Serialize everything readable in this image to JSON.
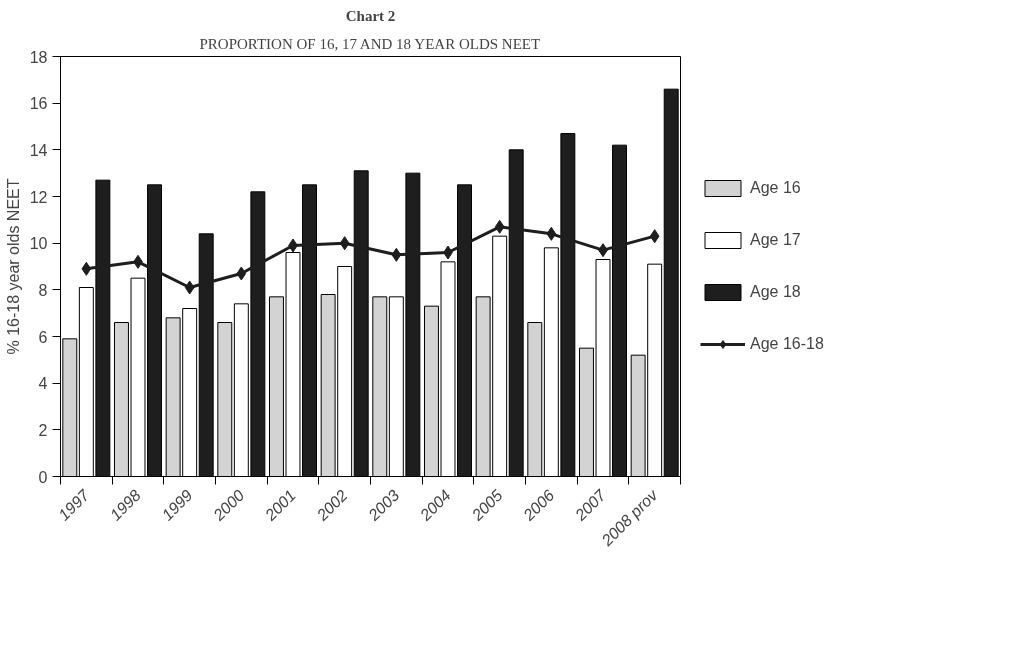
{
  "chart_data": {
    "type": "bar",
    "title": "Chart 2",
    "subtitle": "PROPORTION OF 16, 17 AND 18 YEAR OLDS NEET",
    "ylabel": "% 16-18 year olds NEET",
    "categories": [
      "1997",
      "1998",
      "1999",
      "2000",
      "2001",
      "2002",
      "2003",
      "2004",
      "2005",
      "2006",
      "2007",
      "2008 prov"
    ],
    "series": [
      {
        "name": "Age 16",
        "color": "#d3d3d3",
        "values": [
          5.9,
          6.6,
          6.8,
          6.6,
          7.7,
          7.8,
          7.7,
          7.3,
          7.7,
          6.6,
          5.5,
          5.2
        ]
      },
      {
        "name": "Age 17",
        "color": "#ffffff",
        "values": [
          8.1,
          8.5,
          7.2,
          7.4,
          9.6,
          9.0,
          7.7,
          9.2,
          10.3,
          9.8,
          9.3,
          9.1
        ]
      },
      {
        "name": "Age 18",
        "color": "#1e1e1e",
        "values": [
          12.7,
          12.5,
          10.4,
          12.2,
          12.5,
          13.1,
          13.0,
          12.5,
          14.0,
          14.7,
          14.2,
          16.6
        ]
      },
      {
        "name": "Age 16-18",
        "type": "line",
        "color": "#1e1e1e",
        "marker": "diamond",
        "values": [
          8.9,
          9.2,
          8.1,
          8.7,
          9.9,
          10.0,
          9.5,
          9.6,
          10.7,
          10.4,
          9.7,
          10.3
        ]
      }
    ],
    "ylim": [
      0,
      18
    ],
    "yticks": [
      0,
      2,
      4,
      6,
      8,
      10,
      12,
      14,
      16,
      18
    ],
    "grid": false,
    "legend": "right"
  }
}
